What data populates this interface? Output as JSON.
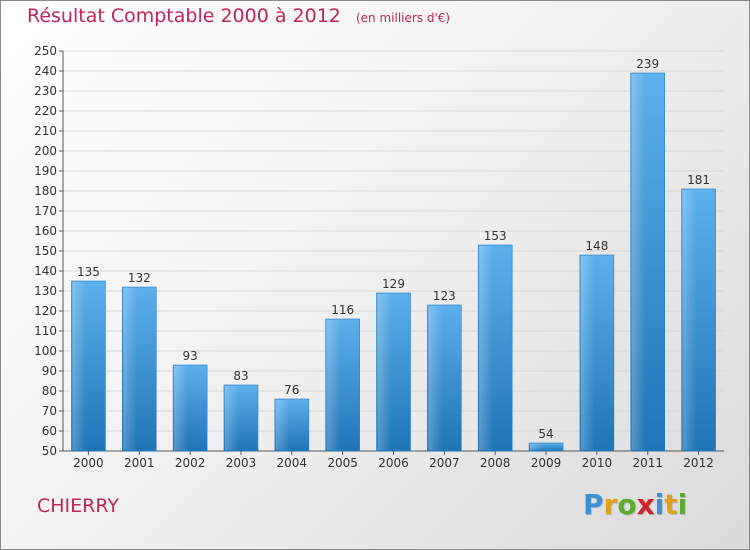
{
  "header": {
    "title": "Résultat Comptable 2000 à 2012",
    "subtitle": "(en milliers d'€)"
  },
  "place": "CHIERRY",
  "logo": {
    "letters": [
      "P",
      "r",
      "o",
      "x",
      "i",
      "t",
      "i"
    ],
    "colors": [
      "#3a8fd6",
      "#e0a21c",
      "#5aab2e",
      "#d2232a",
      "#3a8fd6",
      "#e0a21c",
      "#5aab2e"
    ]
  },
  "chart_data": {
    "type": "bar",
    "title": "Résultat Comptable 2000 à 2012",
    "subtitle": "(en milliers d'€)",
    "xlabel": "",
    "ylabel": "",
    "categories": [
      "2000",
      "2001",
      "2002",
      "2003",
      "2004",
      "2005",
      "2006",
      "2007",
      "2008",
      "2009",
      "2010",
      "2011",
      "2012"
    ],
    "values": [
      135,
      132,
      93,
      83,
      76,
      116,
      129,
      123,
      153,
      54,
      148,
      239,
      181
    ],
    "ylim": [
      50,
      250
    ],
    "ytick_step": 10,
    "grid": true,
    "bar_color": "#3f98dc"
  }
}
